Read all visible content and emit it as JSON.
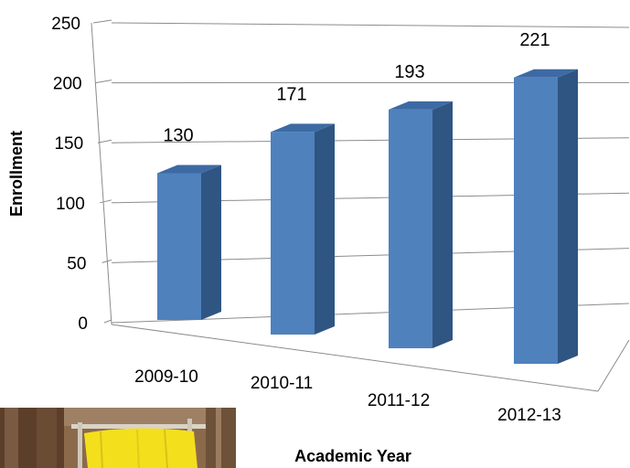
{
  "chart_data": {
    "type": "bar",
    "title": "",
    "xlabel": "Academic Year",
    "ylabel": "Enrollment",
    "categories": [
      "2009-10",
      "2010-11",
      "2011-12",
      "2012-13"
    ],
    "values": [
      130,
      171,
      193,
      221
    ],
    "data_labels": [
      "130",
      "171",
      "193",
      "221"
    ],
    "yticks": [
      "0",
      "50",
      "100",
      "150",
      "200",
      "250"
    ],
    "ylim": [
      0,
      250
    ],
    "grid": true,
    "legend": "none",
    "bar_color": "#4f81bd",
    "bar_side_color": "#2f5582",
    "bar_top_color": "#3d6aa3",
    "gridline_color": "#8c8c8c"
  }
}
